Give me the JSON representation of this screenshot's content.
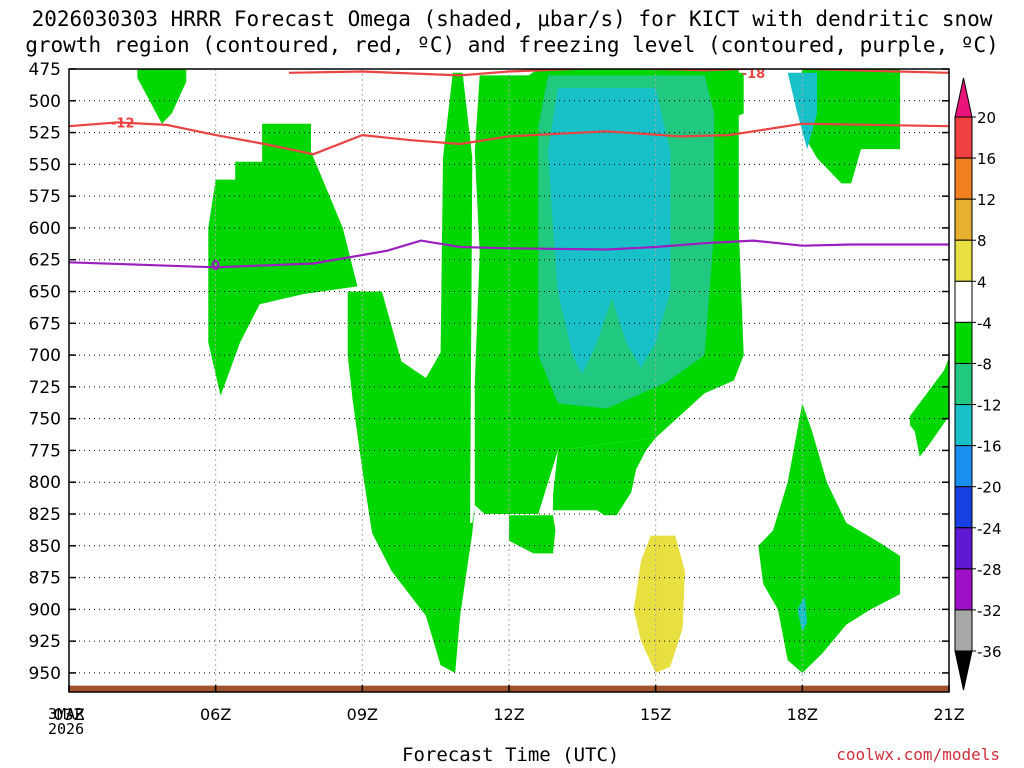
{
  "title": {
    "line1": "2026030303 HRRR Forecast Omega (shaded, μbar/s) for KICT with dendritic snow",
    "line2": "growth region (contoured, red, ºC) and freezing level (contoured, purple, ºC)"
  },
  "credit": "coolwx.com/models",
  "date_tag": {
    "day": "3MAR",
    "year": "2026"
  },
  "chart_data": {
    "type": "heatmap",
    "title": "2026030303 HRRR Forecast Omega (shaded, μbar/s) for KICT with dendritic snow growth region (contoured, red, ºC) and freezing level (contoured, purple, ºC)",
    "xlabel": "Forecast Time (UTC)",
    "ylabel": "",
    "x_range": [
      3,
      21
    ],
    "y_range_hPa": [
      475,
      965
    ],
    "x_ticks": [
      {
        "h": 3,
        "label": "03Z"
      },
      {
        "h": 6,
        "label": "06Z"
      },
      {
        "h": 9,
        "label": "09Z"
      },
      {
        "h": 12,
        "label": "12Z"
      },
      {
        "h": 15,
        "label": "15Z"
      },
      {
        "h": 18,
        "label": "18Z"
      },
      {
        "h": 21,
        "label": "21Z"
      }
    ],
    "y_ticks": [
      475,
      500,
      525,
      550,
      575,
      600,
      625,
      650,
      675,
      700,
      725,
      750,
      775,
      800,
      825,
      850,
      875,
      900,
      925,
      950
    ],
    "grid": true,
    "colorbar": {
      "placement": "right",
      "labels": [
        "20",
        "16",
        "12",
        "8",
        "4",
        "-4",
        "-8",
        "-12",
        "-16",
        "-20",
        "-24",
        "-28",
        "-32",
        "-36"
      ],
      "bands": [
        {
          "min": 20,
          "max": null,
          "color": "#e8147a"
        },
        {
          "min": 16,
          "max": 20,
          "color": "#f04040"
        },
        {
          "min": 12,
          "max": 16,
          "color": "#f08020"
        },
        {
          "min": 8,
          "max": 12,
          "color": "#e8b030"
        },
        {
          "min": 4,
          "max": 8,
          "color": "#e8e040"
        },
        {
          "min": -4,
          "max": 4,
          "color": "#ffffff"
        },
        {
          "min": -8,
          "max": -4,
          "color": "#00d700"
        },
        {
          "min": -12,
          "max": -8,
          "color": "#20c880"
        },
        {
          "min": -16,
          "max": -12,
          "color": "#18c0c8"
        },
        {
          "min": -20,
          "max": -16,
          "color": "#1890f0"
        },
        {
          "min": -24,
          "max": -20,
          "color": "#1840e0"
        },
        {
          "min": -28,
          "max": -24,
          "color": "#6018d0"
        },
        {
          "min": -32,
          "max": -28,
          "color": "#a010c8"
        },
        {
          "min": -36,
          "max": -32,
          "color": "#a8a8a8"
        },
        {
          "min": null,
          "max": -36,
          "color": "#000000"
        }
      ]
    },
    "shaded_regions": [
      {
        "color": "#00d700",
        "points": [
          [
            4.4,
            475
          ],
          [
            5.4,
            475
          ],
          [
            5.4,
            485
          ],
          [
            5.1,
            510
          ],
          [
            4.9,
            518
          ],
          [
            4.4,
            482
          ]
        ]
      },
      {
        "color": "#00d700",
        "points": [
          [
            6.0,
            562
          ],
          [
            6.4,
            562
          ],
          [
            6.4,
            548
          ],
          [
            6.95,
            548
          ],
          [
            6.95,
            518
          ],
          [
            7.95,
            518
          ],
          [
            7.95,
            540
          ],
          [
            8.6,
            600
          ],
          [
            8.9,
            646
          ],
          [
            7.8,
            652
          ],
          [
            6.9,
            660
          ],
          [
            6.5,
            690
          ],
          [
            6.1,
            732
          ],
          [
            5.85,
            690
          ],
          [
            5.85,
            600
          ]
        ]
      },
      {
        "color": "#00d700",
        "points": [
          [
            8.7,
            650
          ],
          [
            9.4,
            650
          ],
          [
            9.8,
            705
          ],
          [
            10.3,
            718
          ],
          [
            10.6,
            698
          ],
          [
            10.65,
            545
          ],
          [
            10.85,
            478
          ],
          [
            11.05,
            478
          ],
          [
            11.25,
            545
          ],
          [
            11.2,
            850
          ],
          [
            10.6,
            842
          ],
          [
            10.9,
            832
          ],
          [
            11.25,
            832
          ],
          [
            11.3,
            818
          ],
          [
            11.25,
            840
          ],
          [
            11.0,
            905
          ],
          [
            10.9,
            950
          ],
          [
            10.6,
            944
          ],
          [
            10.3,
            905
          ],
          [
            9.6,
            870
          ],
          [
            9.2,
            840
          ],
          [
            9.0,
            790
          ],
          [
            8.8,
            735
          ],
          [
            8.7,
            700
          ]
        ]
      },
      {
        "color": "#00d700",
        "points": [
          [
            11.4,
            480
          ],
          [
            12.4,
            480
          ],
          [
            12.6,
            475
          ],
          [
            16.7,
            475
          ],
          [
            16.7,
            600
          ],
          [
            16.8,
            700
          ],
          [
            16.6,
            720
          ],
          [
            16.0,
            730
          ],
          [
            15.0,
            765
          ],
          [
            13.0,
            775
          ],
          [
            12.8,
            800
          ],
          [
            12.6,
            825
          ],
          [
            12.2,
            825
          ],
          [
            11.5,
            825
          ],
          [
            11.3,
            818
          ],
          [
            11.3,
            722
          ],
          [
            11.4,
            620
          ],
          [
            11.3,
            540
          ]
        ]
      },
      {
        "color": "#00d700",
        "points": [
          [
            13.0,
            775
          ],
          [
            15.0,
            765
          ],
          [
            14.8,
            775
          ],
          [
            14.6,
            790
          ],
          [
            14.5,
            808
          ],
          [
            14.2,
            826
          ],
          [
            13.95,
            826
          ],
          [
            13.8,
            822
          ],
          [
            13.2,
            822
          ],
          [
            12.9,
            822
          ],
          [
            12.9,
            810
          ]
        ]
      },
      {
        "color": "#00d700",
        "points": [
          [
            12.0,
            826
          ],
          [
            12.9,
            826
          ],
          [
            12.95,
            838
          ],
          [
            12.9,
            856
          ],
          [
            12.5,
            856
          ],
          [
            12.0,
            846
          ]
        ]
      },
      {
        "color": "#00d700",
        "points": [
          [
            16.3,
            478
          ],
          [
            16.8,
            478
          ],
          [
            16.8,
            510
          ],
          [
            16.3,
            518
          ],
          [
            16.0,
            502
          ]
        ]
      },
      {
        "color": "#00d700",
        "points": [
          [
            18.0,
            475
          ],
          [
            20.0,
            475
          ],
          [
            20.0,
            538
          ],
          [
            19.2,
            538
          ],
          [
            19.0,
            565
          ],
          [
            18.8,
            565
          ],
          [
            18.3,
            545
          ],
          [
            18.0,
            525
          ],
          [
            17.9,
            500
          ]
        ]
      },
      {
        "color": "#00d700",
        "points": [
          [
            18.0,
            738
          ],
          [
            18.2,
            760
          ],
          [
            18.5,
            800
          ],
          [
            18.9,
            832
          ],
          [
            19.6,
            848
          ],
          [
            20.0,
            858
          ],
          [
            20.0,
            888
          ],
          [
            19.4,
            900
          ],
          [
            18.9,
            912
          ],
          [
            18.4,
            935
          ],
          [
            18.0,
            950
          ],
          [
            17.7,
            940
          ],
          [
            17.5,
            900
          ],
          [
            17.2,
            880
          ],
          [
            17.1,
            850
          ],
          [
            17.4,
            838
          ],
          [
            17.7,
            800
          ]
        ]
      },
      {
        "color": "#00d700",
        "points": [
          [
            20.2,
            748
          ],
          [
            20.9,
            712
          ],
          [
            21.0,
            702
          ],
          [
            21.0,
            748
          ],
          [
            20.6,
            770
          ],
          [
            20.4,
            780
          ],
          [
            20.3,
            760
          ],
          [
            20.2,
            755
          ]
        ]
      },
      {
        "color": "#20c880",
        "points": [
          [
            12.8,
            480
          ],
          [
            16.0,
            480
          ],
          [
            16.2,
            510
          ],
          [
            16.2,
            600
          ],
          [
            16.0,
            700
          ],
          [
            15.2,
            722
          ],
          [
            14.0,
            742
          ],
          [
            13.0,
            738
          ],
          [
            12.6,
            700
          ],
          [
            12.6,
            600
          ],
          [
            12.6,
            520
          ]
        ]
      },
      {
        "color": "#18c0c8",
        "points": [
          [
            13.0,
            490
          ],
          [
            15.0,
            490
          ],
          [
            15.3,
            540
          ],
          [
            15.3,
            600
          ],
          [
            15.3,
            650
          ],
          [
            15.0,
            690
          ],
          [
            14.7,
            710
          ],
          [
            14.4,
            690
          ],
          [
            14.1,
            655
          ],
          [
            13.8,
            690
          ],
          [
            13.5,
            715
          ],
          [
            13.3,
            700
          ],
          [
            13.0,
            650
          ],
          [
            12.9,
            600
          ],
          [
            12.8,
            540
          ]
        ]
      },
      {
        "color": "#18c0c8",
        "points": [
          [
            17.7,
            478
          ],
          [
            18.3,
            478
          ],
          [
            18.3,
            510
          ],
          [
            18.1,
            538
          ],
          [
            17.9,
            510
          ]
        ]
      },
      {
        "color": "#18c0c8",
        "points": [
          [
            17.9,
            900
          ],
          [
            18.05,
            890
          ],
          [
            18.1,
            910
          ],
          [
            18.0,
            918
          ]
        ]
      },
      {
        "color": "#e8e040",
        "points": [
          [
            14.9,
            842
          ],
          [
            15.4,
            842
          ],
          [
            15.6,
            870
          ],
          [
            15.55,
            915
          ],
          [
            15.3,
            945
          ],
          [
            15.0,
            950
          ],
          [
            14.7,
            925
          ],
          [
            14.55,
            900
          ],
          [
            14.7,
            862
          ]
        ]
      }
    ],
    "contours": [
      {
        "name": "dendritic snow growth region",
        "color": "#e84444",
        "label": "-18",
        "label_at": [
          17.0,
          478
        ],
        "points": [
          [
            7.5,
            478
          ],
          [
            9.0,
            477
          ],
          [
            11.0,
            480
          ],
          [
            12.0,
            477
          ],
          [
            14.0,
            474
          ],
          [
            16.0,
            476
          ],
          [
            17.5,
            474
          ],
          [
            19.0,
            476
          ],
          [
            21.0,
            478
          ]
        ]
      },
      {
        "name": "dendritic snow growth region",
        "color": "#e84444",
        "label": "-12",
        "label_at": [
          4.1,
          517
        ],
        "points": [
          [
            3.0,
            520
          ],
          [
            4.0,
            517
          ],
          [
            5.0,
            519
          ],
          [
            6.0,
            527
          ],
          [
            7.0,
            534
          ],
          [
            8.0,
            542
          ],
          [
            9.0,
            527
          ],
          [
            10.0,
            531
          ],
          [
            11.0,
            534
          ],
          [
            12.0,
            528
          ],
          [
            13.0,
            526
          ],
          [
            14.0,
            524
          ],
          [
            15.5,
            528
          ],
          [
            16.5,
            527
          ],
          [
            18.0,
            518
          ],
          [
            21.0,
            520
          ]
        ]
      },
      {
        "name": "freezing level",
        "color": "#9b1fbf",
        "label": "0",
        "label_at": [
          6.0,
          629
        ],
        "points": [
          [
            3.0,
            627
          ],
          [
            4.5,
            629
          ],
          [
            6.0,
            631
          ],
          [
            8.0,
            628
          ],
          [
            9.5,
            618
          ],
          [
            10.2,
            610
          ],
          [
            11.0,
            615
          ],
          [
            12.0,
            616
          ],
          [
            14.0,
            617
          ],
          [
            15.0,
            615
          ],
          [
            16.0,
            612
          ],
          [
            17.0,
            610
          ],
          [
            18.0,
            614
          ],
          [
            19.0,
            613
          ],
          [
            21.0,
            613
          ]
        ]
      }
    ],
    "terrain": {
      "color": "#a0522d",
      "top_hPa": 960
    }
  }
}
